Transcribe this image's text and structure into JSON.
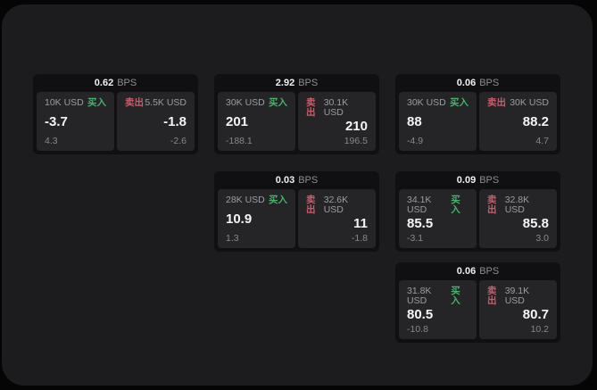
{
  "labels": {
    "bps_unit": "BPS",
    "buy": "买入",
    "sell": "卖出"
  },
  "colors": {
    "buy_green": "#46b36a",
    "sell_red": "#c95d6c",
    "window_bg": "#1c1c1e",
    "card_bg": "#101013",
    "panel_bg": "#252528"
  },
  "cards": [
    {
      "bps": "0.62",
      "buy": {
        "amount": "10K USD",
        "value": "-3.7",
        "sub": "4.3"
      },
      "sell": {
        "amount": "5.5K USD",
        "value": "-1.8",
        "sub": "-2.6"
      }
    },
    {
      "bps": "2.92",
      "buy": {
        "amount": "30K USD",
        "value": "201",
        "sub": "-188.1"
      },
      "sell": {
        "amount": "30.1K USD",
        "value": "210",
        "sub": "196.5"
      }
    },
    {
      "bps": "0.06",
      "buy": {
        "amount": "30K USD",
        "value": "88",
        "sub": "-4.9"
      },
      "sell": {
        "amount": "30K USD",
        "value": "88.2",
        "sub": "4.7"
      }
    },
    {
      "bps": "0.03",
      "buy": {
        "amount": "28K USD",
        "value": "10.9",
        "sub": "1.3"
      },
      "sell": {
        "amount": "32.6K USD",
        "value": "11",
        "sub": "-1.8"
      }
    },
    {
      "bps": "0.09",
      "buy": {
        "amount": "34.1K USD",
        "value": "85.5",
        "sub": "-3.1"
      },
      "sell": {
        "amount": "32.8K USD",
        "value": "85.8",
        "sub": "3.0"
      }
    },
    {
      "bps": "0.06",
      "buy": {
        "amount": "31.8K USD",
        "value": "80.5",
        "sub": "-10.8"
      },
      "sell": {
        "amount": "39.1K USD",
        "value": "80.7",
        "sub": "10.2"
      }
    }
  ]
}
